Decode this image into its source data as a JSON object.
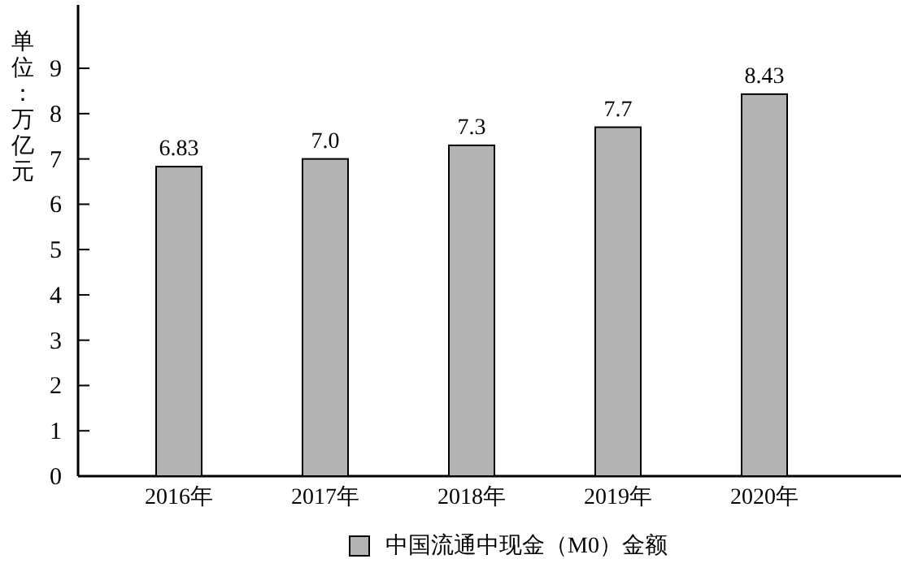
{
  "chart_data": {
    "type": "bar",
    "ylabel": "单位：万亿元",
    "categories": [
      "2016年",
      "2017年",
      "2018年",
      "2019年",
      "2020年"
    ],
    "series": [
      {
        "name": "中国流通中现金（M0）金额",
        "color": "#b3b3b3",
        "values": [
          6.83,
          7.0,
          7.3,
          7.7,
          8.43
        ],
        "value_labels": [
          "6.83",
          "7.0",
          "7.3",
          "7.7",
          "8.43"
        ]
      }
    ],
    "ylim": [
      0,
      10.4
    ],
    "yticks": [
      0,
      1,
      2,
      3,
      4,
      5,
      6,
      7,
      8,
      9
    ],
    "legend": "bottom",
    "grid": false
  }
}
